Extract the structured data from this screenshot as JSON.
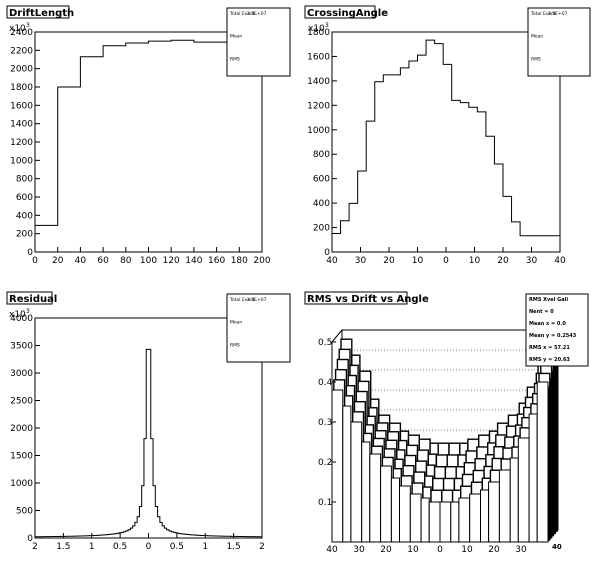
{
  "panels": [
    {
      "id": "drift",
      "title": "DriftLength",
      "exponent_label": "x10",
      "exponent_power": "3",
      "stats": {
        "rows": [
          [
            "Total Event",
            "2.5E+07"
          ],
          [
            "Mean",
            ""
          ],
          [
            "RMS",
            ""
          ]
        ]
      },
      "chart_data": {
        "type": "bar",
        "style": "step-histogram",
        "bin_edges": [
          0,
          20,
          40,
          60,
          80,
          100,
          120,
          140,
          160,
          180,
          200
        ],
        "values": [
          290,
          1800,
          2130,
          2250,
          2280,
          2300,
          2310,
          2290,
          2290,
          2290
        ],
        "xlim": [
          0,
          200
        ],
        "ylim": [
          0,
          2400
        ],
        "xticks": [
          "0",
          "20",
          "40",
          "60",
          "80",
          "100",
          "120",
          "140",
          "160",
          "180",
          "200"
        ],
        "yticks": [
          "0",
          "200",
          "400",
          "600",
          "800",
          "1000",
          "1200",
          "1400",
          "1600",
          "1800",
          "2000",
          "2200",
          "2400"
        ],
        "xlabel": "",
        "ylabel": "",
        "grid": false
      }
    },
    {
      "id": "crossing",
      "title": "CrossingAngle",
      "exponent_label": "x10",
      "exponent_power": "3",
      "stats": {
        "rows": [
          [
            "Total Event",
            "2.5E+07"
          ],
          [
            "Mean",
            ""
          ],
          [
            "RMS",
            ""
          ]
        ]
      },
      "chart_data": {
        "type": "bar",
        "style": "step-histogram",
        "bin_edges": [
          -40,
          -37,
          -34,
          -31,
          -28,
          -25,
          -22,
          -19,
          -16,
          -13,
          -10,
          -7,
          -4,
          -1,
          2,
          5,
          8,
          11,
          14,
          17,
          20,
          23,
          26,
          29,
          32,
          35,
          38,
          40
        ],
        "values": [
          160,
          270,
          420,
          700,
          1130,
          1470,
          1530,
          1530,
          1590,
          1650,
          1700,
          1830,
          1800,
          1620,
          1310,
          1290,
          1250,
          1210,
          1000,
          760,
          480,
          260,
          140,
          140,
          140,
          140,
          140
        ],
        "xlim": [
          -40,
          40
        ],
        "ylim": [
          0,
          1900
        ],
        "xticks": [
          "40",
          "30",
          "20",
          "10",
          "0",
          "10",
          "20",
          "30",
          "40"
        ],
        "yticks": [
          "0",
          "200",
          "400",
          "600",
          "800",
          "1000",
          "1200",
          "1400",
          "1600",
          "1800"
        ],
        "xlabel": "",
        "ylabel": "",
        "grid": false
      }
    },
    {
      "id": "residual",
      "title": "Residual",
      "exponent_label": "x10",
      "exponent_power": "3",
      "stats": {
        "rows": [
          [
            "Total Event",
            "2.5E+07"
          ],
          [
            "Mean",
            ""
          ],
          [
            "RMS",
            ""
          ]
        ]
      },
      "chart_data": {
        "type": "bar",
        "style": "step-histogram",
        "x_start": -2,
        "x_end": 2,
        "nbins": 100,
        "peak": 3800,
        "xlim": [
          -2,
          2
        ],
        "ylim": [
          0,
          4000
        ],
        "xticks": [
          "2",
          "1.5",
          "1",
          "0.5",
          "0",
          "0.5",
          "1",
          "1.5",
          "2"
        ],
        "yticks": [
          "0",
          "500",
          "1000",
          "1500",
          "2000",
          "2500",
          "3000",
          "3500",
          "4000"
        ],
        "xlabel": "",
        "ylabel": "",
        "grid": false
      }
    },
    {
      "id": "rms3d",
      "title": "RMS vs Drift vs Angle",
      "stats": {
        "rows": [
          [
            "RMS Xvel Gali",
            ""
          ],
          [
            "Nent = 0",
            ""
          ],
          [
            "Mean x = 0.0",
            ""
          ],
          [
            "Mean y = 0.2543",
            ""
          ],
          [
            "RMS x = 57.21",
            ""
          ],
          [
            "RMS y = 20.63",
            ""
          ]
        ]
      },
      "chart_data": {
        "type": "bar",
        "style": "lego-3d",
        "x_edges": [
          -40,
          -36,
          -33,
          -29,
          -26,
          -22,
          -18,
          -15,
          -11,
          -7,
          -4,
          0,
          4,
          7,
          11,
          15,
          18,
          22,
          26,
          29,
          33,
          36,
          40
        ],
        "front_values": [
          0.38,
          0.34,
          0.3,
          0.25,
          0.22,
          0.19,
          0.16,
          0.14,
          0.12,
          0.11,
          0.1,
          0.1,
          0.1,
          0.11,
          0.12,
          0.13,
          0.15,
          0.18,
          0.21,
          0.26,
          0.32,
          0.4
        ],
        "back_values": [
          0.48,
          0.44,
          0.4,
          0.33,
          0.29,
          0.27,
          0.25,
          0.24,
          0.23,
          0.22,
          0.22,
          0.22,
          0.22,
          0.23,
          0.24,
          0.25,
          0.27,
          0.29,
          0.32,
          0.36,
          0.42,
          0.48
        ],
        "xlim": [
          -40,
          40
        ],
        "zlim": [
          0,
          0.5
        ],
        "xticks": [
          "40",
          "30",
          "20",
          "10",
          "0",
          "10",
          "20",
          "30"
        ],
        "zticks": [
          "0.1",
          "0.2",
          "0.3",
          "0.4",
          "0.5"
        ],
        "xlabel": "",
        "ylabel": "",
        "grid": true
      }
    }
  ]
}
